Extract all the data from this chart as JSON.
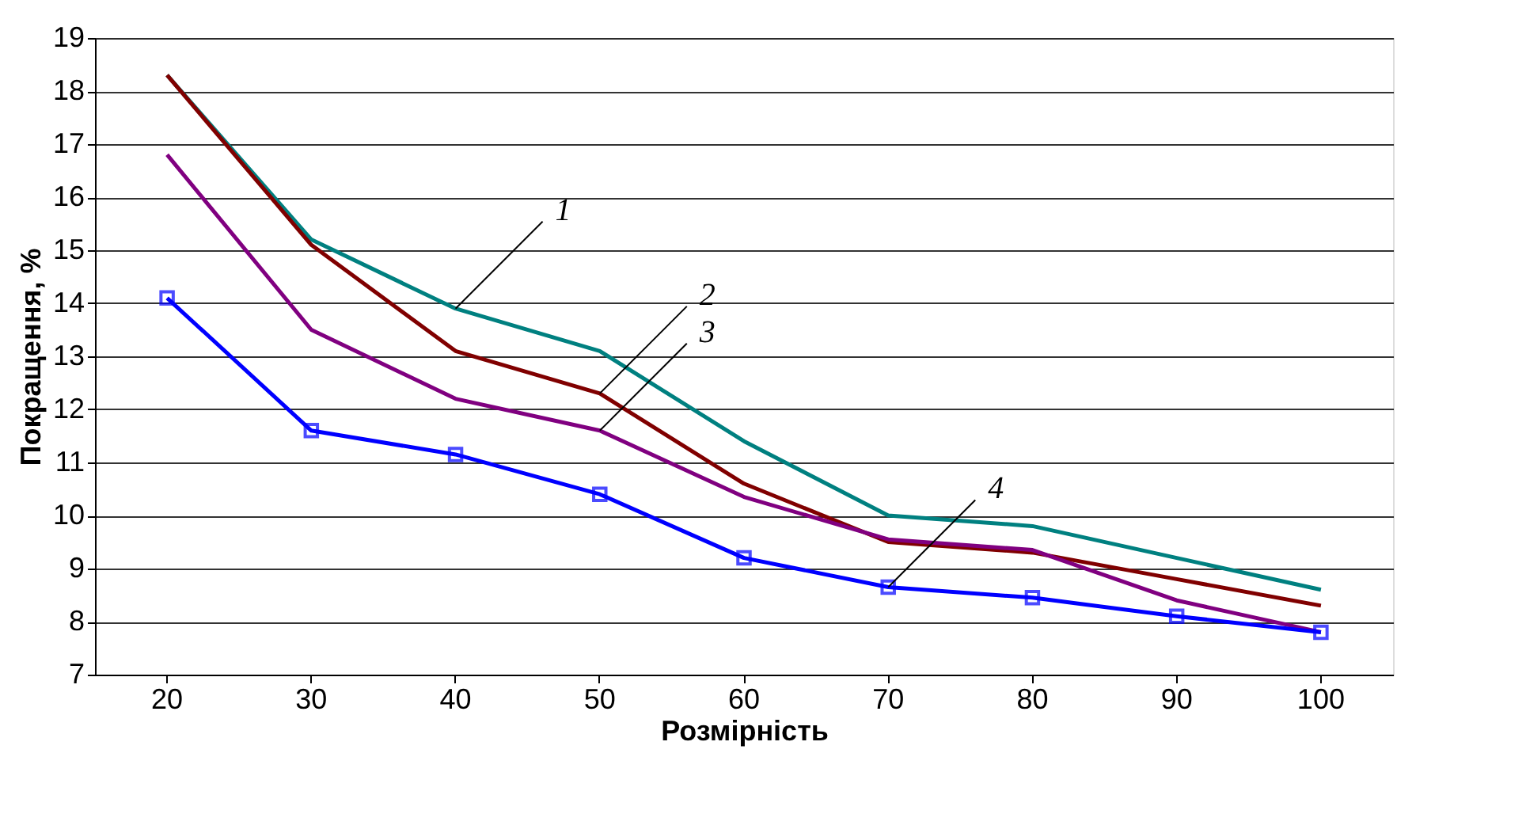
{
  "chart_data": {
    "type": "line",
    "xlabel": "Розмірність",
    "ylabel": "Покращення, %",
    "categories": [
      "20",
      "30",
      "40",
      "50",
      "60",
      "70",
      "80",
      "90",
      "100"
    ],
    "series": [
      {
        "color": "#008080",
        "values": [
          18.3,
          15.2,
          13.9,
          13.1,
          11.4,
          10.0,
          9.8,
          9.2,
          8.6
        ]
      },
      {
        "color": "#800000",
        "values": [
          18.3,
          15.1,
          13.1,
          12.3,
          10.6,
          9.5,
          9.3,
          8.8,
          8.3
        ]
      },
      {
        "color": "#800080",
        "values": [
          16.8,
          13.5,
          12.2,
          11.6,
          10.35,
          9.55,
          9.35,
          8.4,
          7.8
        ]
      },
      {
        "color": "#0000ff",
        "values": [
          14.1,
          11.6,
          11.15,
          10.4,
          9.2,
          8.65,
          8.45,
          8.1,
          7.8
        ],
        "marker": "square"
      }
    ],
    "ylim": [
      7,
      19
    ],
    "yticks": [
      7,
      8,
      9,
      10,
      11,
      12,
      13,
      14,
      15,
      16,
      17,
      18,
      19
    ],
    "grid": "y",
    "marker": "none",
    "line_style": "solid",
    "annotations": [
      {
        "text": "1",
        "x": "40",
        "y": 13.9
      },
      {
        "text": "2",
        "x": "50",
        "y": 12.3
      },
      {
        "text": "3",
        "x": "50",
        "y": 11.6
      },
      {
        "text": "4",
        "x": "70",
        "y": 8.65
      }
    ]
  }
}
